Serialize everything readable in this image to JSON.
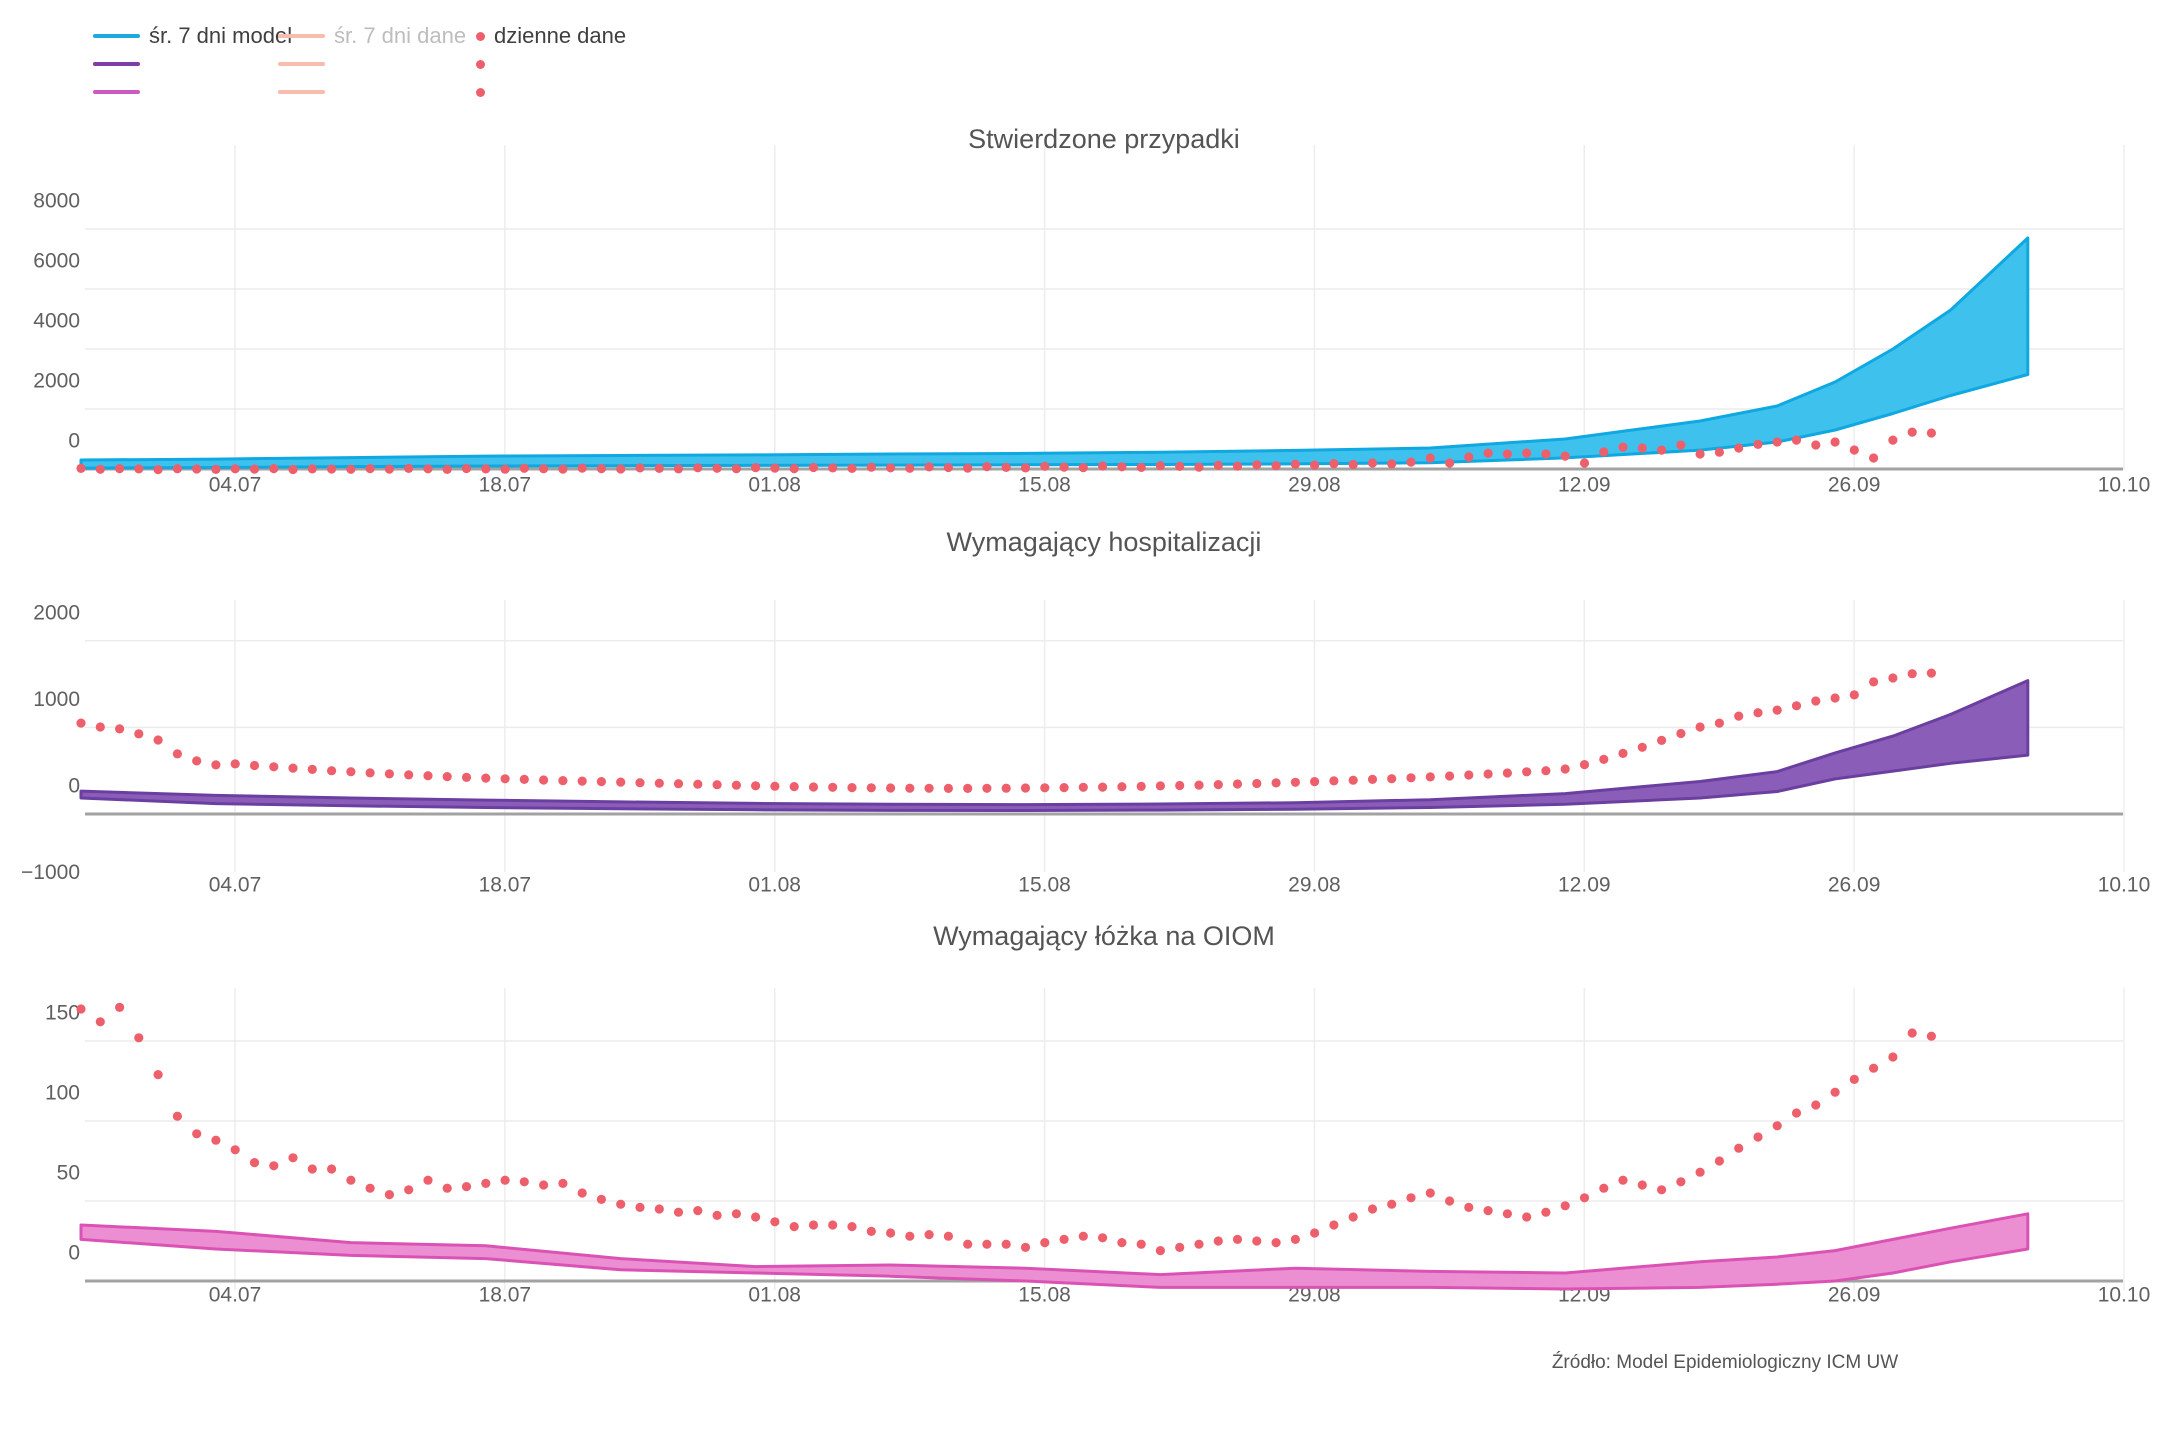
{
  "legend": {
    "columns": [
      {
        "label": "śr. 7 dni model",
        "type": "line",
        "label_color": "#3f3f3f",
        "colors": [
          "#1ba9e1",
          "#7b3fa5",
          "#cb5ac3"
        ]
      },
      {
        "label": "śr. 7 dni dane",
        "type": "line",
        "label_color": "#bdbdbd",
        "colors": [
          "#f8bcae",
          "#f8bcae",
          "#f8bcae"
        ]
      },
      {
        "label": "dzienne dane",
        "type": "dot",
        "label_color": "#3f3f3f",
        "colors": [
          "#ee5f6c",
          "#ee5f6c",
          "#ee5f6c"
        ]
      }
    ]
  },
  "source": {
    "text": "Źródło: Model Epidemiologiczny ICM UW"
  },
  "chart_data": {
    "type": "area",
    "description": "Three stacked charts: 7-day model prediction band (area) vs daily data (scatter dots), dates 26.06 to 10.10",
    "x_axis": {
      "tick_labels": [
        "04.07",
        "18.07",
        "01.08",
        "15.08",
        "29.08",
        "12.09",
        "26.09",
        "10.10"
      ],
      "start_date": "26.06",
      "grid": true
    },
    "charts": [
      {
        "title": "Stwierdzone przypadki",
        "band_fill": "#3fc1ee",
        "band_stroke": "#0fa8e0",
        "dot_color": "#ee5f6c",
        "ylim": [
          -900,
          8600
        ],
        "y_ticks": [
          {
            "label": "8000",
            "value": 8000
          },
          {
            "label": "6000",
            "value": 6000
          },
          {
            "label": "4000",
            "value": 4000
          },
          {
            "label": "2000",
            "value": 2000
          },
          {
            "label": "0",
            "value": 0
          }
        ],
        "band": {
          "days": [
            0,
            7,
            14,
            21,
            28,
            35,
            42,
            49,
            56,
            63,
            70,
            77,
            84,
            88,
            91,
            94,
            97,
            101
          ],
          "lower": [
            30,
            50,
            80,
            100,
            110,
            120,
            130,
            140,
            150,
            170,
            210,
            370,
            630,
            900,
            1300,
            1850,
            2450,
            3150
          ],
          "upper": [
            300,
            330,
            380,
            430,
            450,
            470,
            500,
            520,
            560,
            620,
            700,
            1000,
            1600,
            2100,
            2900,
            4000,
            5300,
            7700
          ]
        },
        "dots": [
          20,
          -10,
          15,
          5,
          -20,
          10,
          0,
          -15,
          8,
          -5,
          12,
          -18,
          5,
          0,
          -10,
          15,
          -5,
          20,
          8,
          -12,
          18,
          5,
          -8,
          25,
          10,
          -5,
          30,
          15,
          0,
          35,
          20,
          5,
          40,
          25,
          10,
          45,
          30,
          15,
          50,
          35,
          20,
          60,
          40,
          25,
          70,
          50,
          30,
          80,
          55,
          35,
          90,
          65,
          45,
          100,
          75,
          55,
          110,
          85,
          65,
          120,
          95,
          140,
          110,
          160,
          130,
          180,
          150,
          200,
          170,
          230,
          366,
          200,
          400,
          530,
          500,
          530,
          500,
          430,
          200,
          570,
          730,
          700,
          630,
          800,
          500,
          560,
          700,
          820,
          900,
          965,
          800,
          900,
          633,
          366,
          965,
          1230,
          1200
        ]
      },
      {
        "title": "Wymagający hospitalizacji",
        "band_fill": "#8a5eb8",
        "band_stroke": "#6b3fa0",
        "dot_color": "#ee5f6c",
        "ylim": [
          -1100,
          2500
        ],
        "y_ticks": [
          {
            "label": "2000",
            "value": 2000
          },
          {
            "label": "1000",
            "value": 1000
          },
          {
            "label": "0",
            "value": 0
          },
          {
            "label": "−1000",
            "value": -1000
          }
        ],
        "band": {
          "days": [
            0,
            7,
            14,
            21,
            28,
            35,
            42,
            49,
            56,
            63,
            70,
            77,
            84,
            88,
            91,
            94,
            97,
            101
          ],
          "lower": [
            185,
            120,
            95,
            75,
            60,
            48,
            42,
            40,
            45,
            55,
            75,
            112,
            185,
            260,
            405,
            495,
            585,
            680
          ],
          "upper": [
            265,
            215,
            185,
            160,
            140,
            122,
            112,
            108,
            115,
            130,
            165,
            235,
            375,
            490,
            705,
            900,
            1150,
            1540
          ]
        },
        "dots": [
          1050,
          1005,
          983,
          925,
          855,
          694,
          613,
          567,
          578,
          560,
          545,
          530,
          515,
          500,
          488,
          475,
          463,
          452,
          442,
          432,
          423,
          415,
          407,
          400,
          393,
          386,
          380,
          374,
          368,
          362,
          356,
          350,
          344,
          338,
          332,
          326,
          321,
          316,
          312,
          308,
          305,
          302,
          300,
          298,
          297,
          296,
          296,
          297,
          298,
          300,
          302,
          305,
          308,
          311,
          315,
          319,
          324,
          329,
          334,
          340,
          346,
          352,
          359,
          366,
          374,
          382,
          390,
          399,
          408,
          418,
          428,
          439,
          450,
          462,
          474,
          487,
          500,
          520,
          570,
          630,
          700,
          770,
          850,
          930,
          1005,
          1050,
          1130,
          1170,
          1200,
          1250,
          1305,
          1340,
          1375,
          1525,
          1570,
          1620,
          1627
        ]
      },
      {
        "title": "Wymagający łóżka na OIOM",
        "band_fill": "#ec8fd2",
        "band_stroke": "#db52b5",
        "dot_color": "#ee5f6c",
        "ylim": [
          -25,
          185
        ],
        "y_ticks": [
          {
            "label": "150",
            "value": 150
          },
          {
            "label": "100",
            "value": 100
          },
          {
            "label": "50",
            "value": 50
          },
          {
            "label": "0",
            "value": 0
          }
        ],
        "band": {
          "days": [
            0,
            7,
            14,
            21,
            28,
            35,
            42,
            49,
            56,
            63,
            70,
            77,
            84,
            88,
            91,
            94,
            97,
            101
          ],
          "lower": [
            26,
            20,
            16,
            14,
            7,
            5,
            3,
            0,
            -4,
            -4,
            -4,
            -5,
            -4,
            -2,
            0,
            5,
            12,
            20
          ],
          "upper": [
            35,
            31,
            24,
            22,
            14,
            9,
            10,
            8,
            4,
            8,
            6,
            5,
            12,
            15,
            19,
            26,
            33,
            42
          ]
        },
        "dots": [
          170,
          162,
          171,
          152,
          129,
          103,
          92,
          88,
          82,
          74,
          72,
          77,
          70,
          70,
          63,
          58,
          54,
          57,
          63,
          58,
          59,
          61,
          63,
          62,
          60,
          61,
          55,
          51,
          48,
          46,
          45,
          43,
          44,
          41,
          42,
          40,
          37,
          34,
          35,
          35,
          34,
          31,
          30,
          28,
          29,
          28,
          23,
          23,
          23,
          21,
          24,
          26,
          28,
          27,
          24,
          23,
          19,
          21,
          23,
          25,
          26,
          25,
          24,
          26,
          30,
          35,
          40,
          45,
          48,
          52,
          55,
          50,
          46,
          44,
          42,
          40,
          43,
          47,
          52,
          58,
          63,
          60,
          57,
          62,
          68,
          75,
          83,
          90,
          97,
          105,
          110,
          118,
          126,
          133,
          140,
          155,
          153
        ]
      }
    ]
  }
}
